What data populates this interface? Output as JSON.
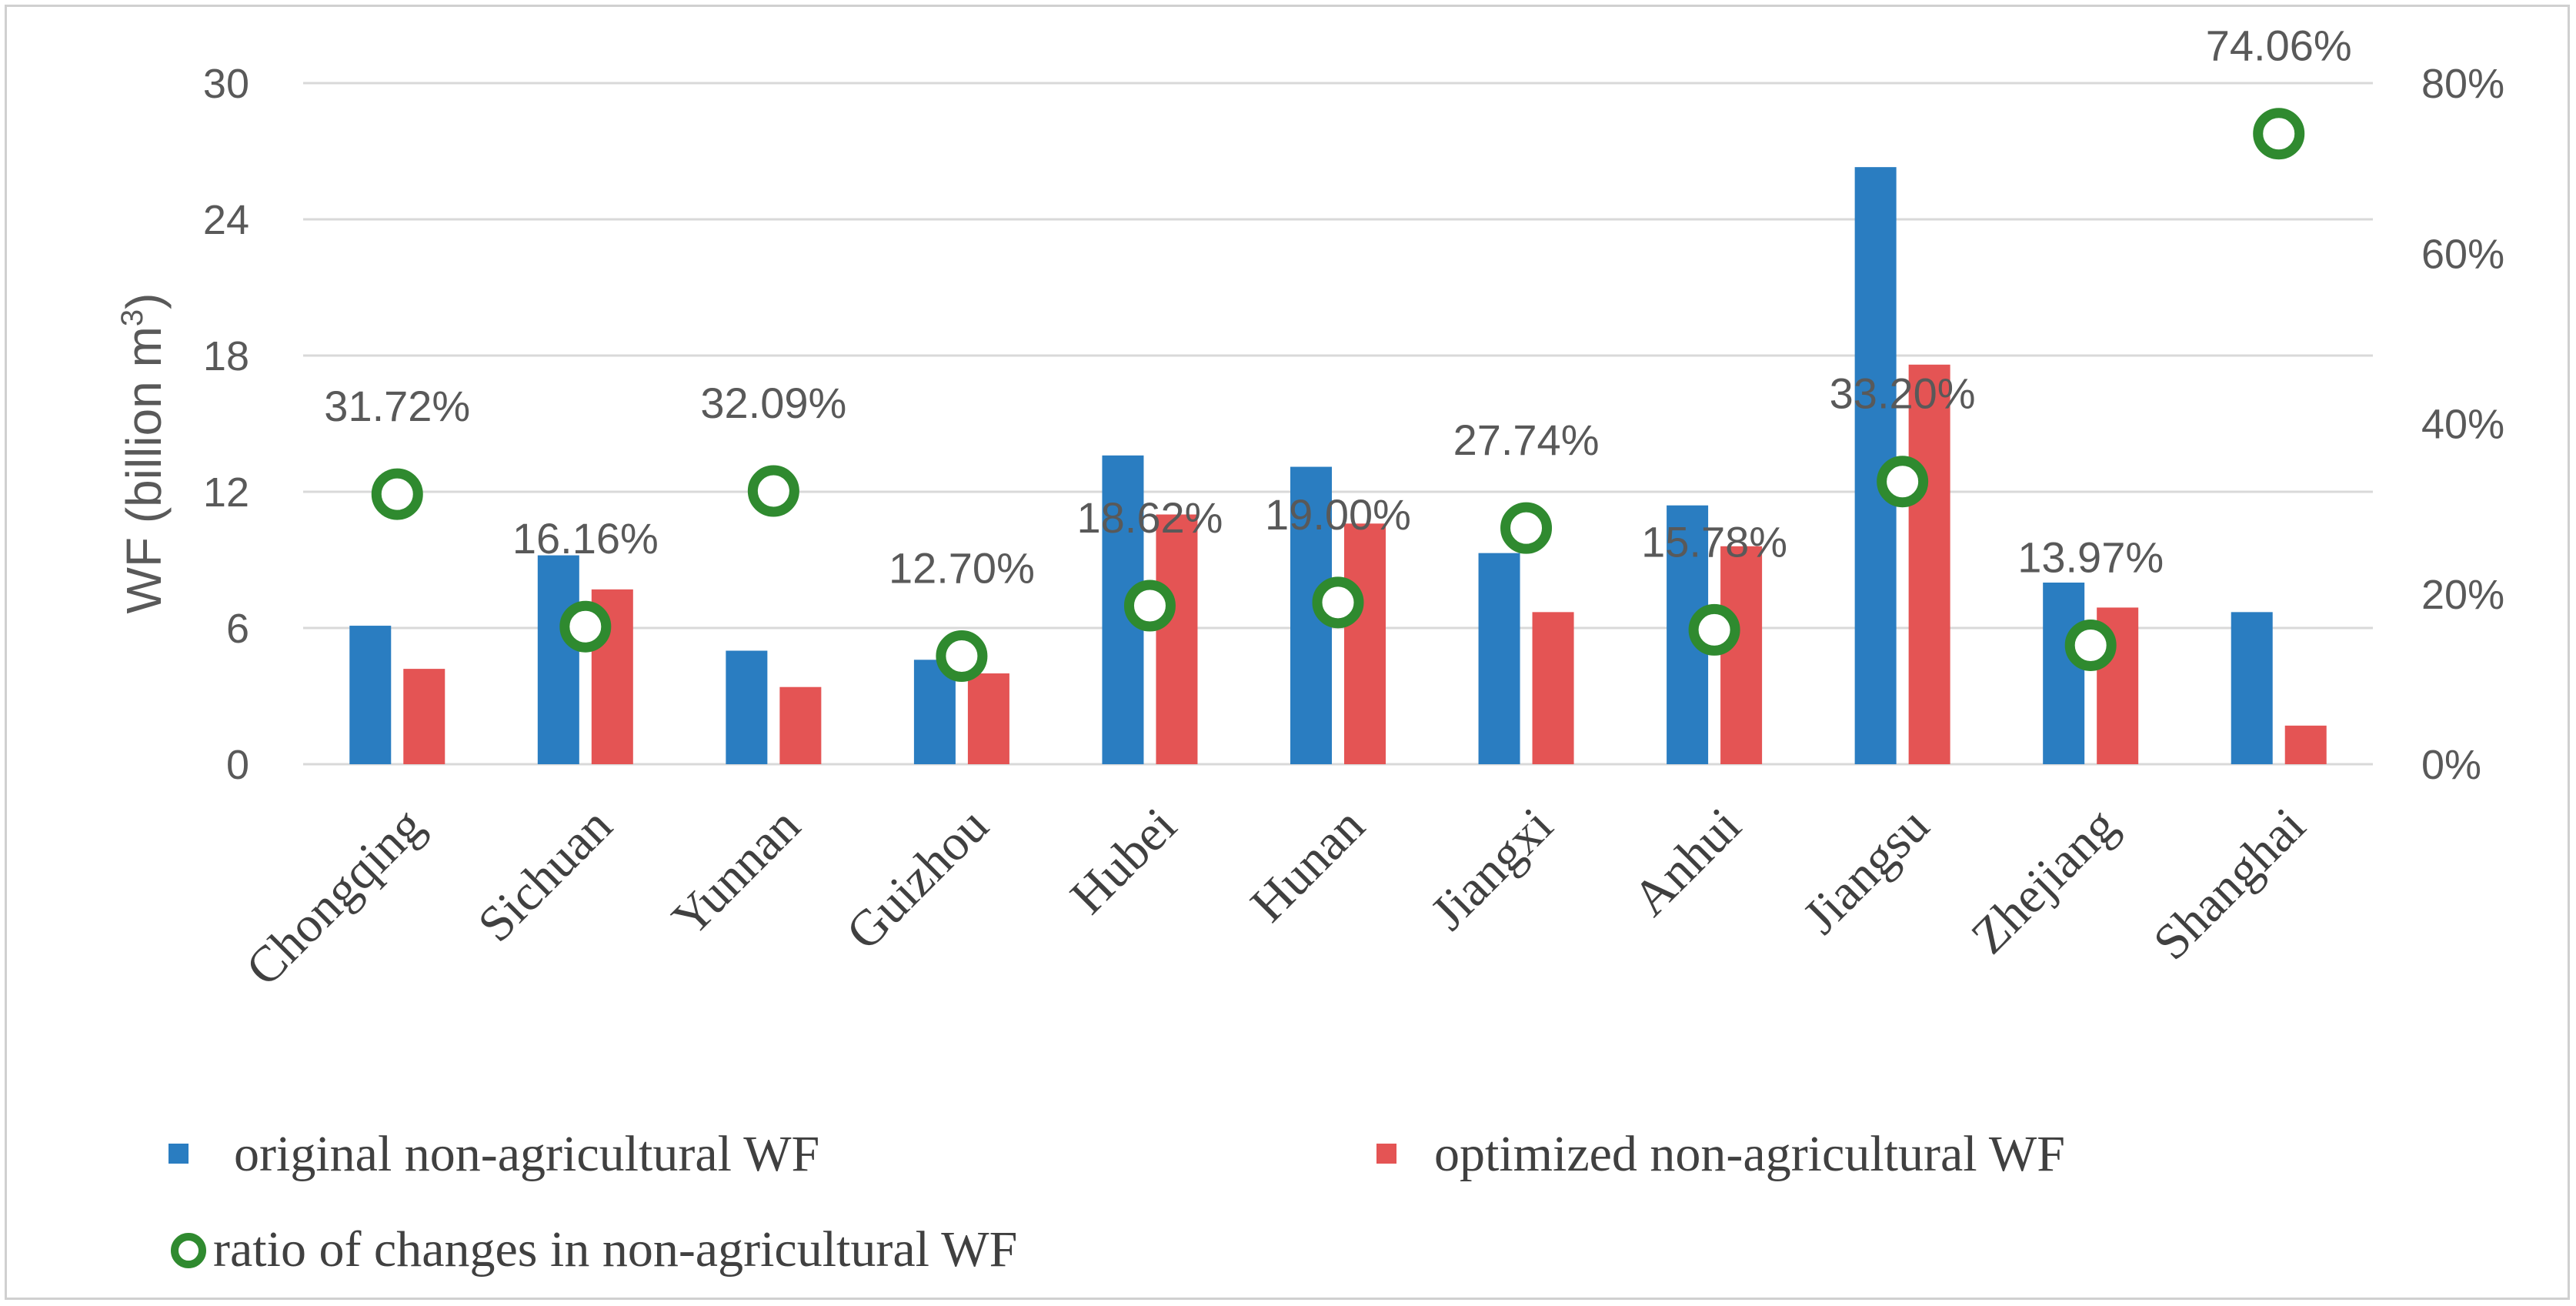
{
  "chart_data": {
    "type": "bar",
    "categories": [
      "Chongqing",
      "Sichuan",
      "Yunnan",
      "Guizhou",
      "Hubei",
      "Hunan",
      "Jiangxi",
      "Anhui",
      "Jiangsu",
      "Zhejiang",
      "Shanghai"
    ],
    "series": [
      {
        "name": "original  non-agricultural WF",
        "color": "#2a7dc1",
        "axis": "left",
        "values": [
          6.1,
          9.2,
          5.0,
          4.6,
          13.6,
          13.1,
          9.3,
          11.4,
          26.3,
          8.0,
          6.7
        ]
      },
      {
        "name": "optimized non-agricultural WF",
        "color": "#e45454",
        "axis": "left",
        "values": [
          4.2,
          7.7,
          3.4,
          4.0,
          11.0,
          10.6,
          6.7,
          9.6,
          17.6,
          6.9,
          1.7
        ]
      },
      {
        "name": "ratio of changes in non-agricultural  WF",
        "color": "#2f8a2f",
        "axis": "right",
        "values": [
          31.72,
          16.16,
          32.09,
          12.7,
          18.62,
          19.0,
          27.74,
          15.78,
          33.2,
          13.97,
          74.06
        ],
        "labels": [
          "31.72%",
          "16.16%",
          "32.09%",
          "12.70%",
          "18.62%",
          "19.00%",
          "27.74%",
          "15.78%",
          "33.20%",
          "13.97%",
          "74.06%"
        ]
      }
    ],
    "ylabel_text": "WF (billion m",
    "ylabel_sup": "3",
    "ylabel_close": ")",
    "ylim": [
      0,
      30
    ],
    "y_ticks": [
      "0",
      "6",
      "12",
      "18",
      "24",
      "30"
    ],
    "y_tick_values": [
      0,
      6,
      12,
      18,
      24,
      30
    ],
    "y2lim": [
      0,
      80
    ],
    "y2_ticks": [
      "0%",
      "20%",
      "40%",
      "60%",
      "80%"
    ],
    "y2_tick_values": [
      0,
      20,
      40,
      60,
      80
    ],
    "grid": true,
    "legend_position": "bottom"
  }
}
